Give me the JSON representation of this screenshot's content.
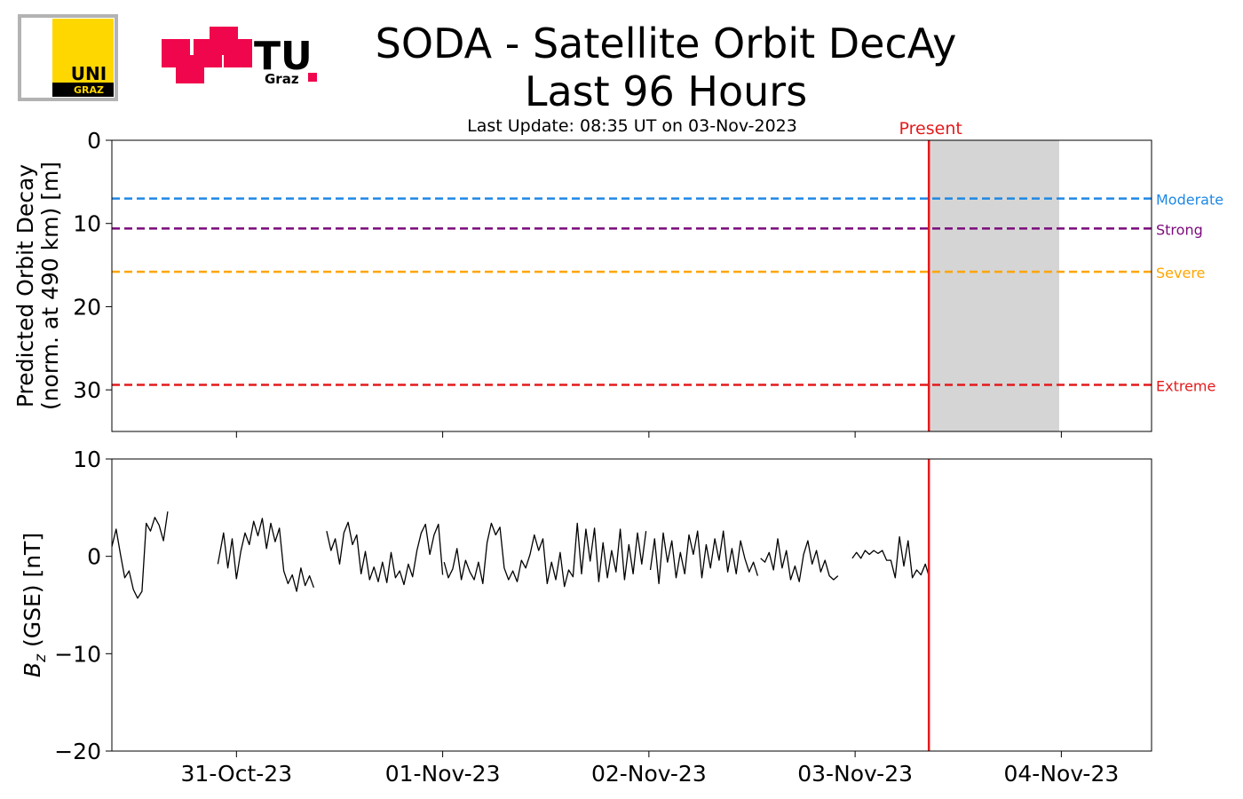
{
  "header": {
    "title_line1": "SODA - Satellite Orbit DecAy",
    "title_line2": "Last 96 Hours",
    "subtitle": "Last Update: 08:35 UT on 03-Nov-2023",
    "logo_uni_text": "UNI",
    "logo_uni_subtext": "GRAZ",
    "logo_tu_text": "TU",
    "logo_tu_subtext": "Graz"
  },
  "colors": {
    "moderate": "#1e88e5",
    "strong": "#7b0a7b",
    "severe": "#ffa500",
    "extreme": "#e41a1c",
    "present": "#e41a1c",
    "forecast_shade": "#d3d3d3",
    "bz_line": "#000000",
    "uni_yellow": "#ffd700",
    "tu_red": "#f0064c"
  },
  "chart_data": [
    {
      "type": "line",
      "ylabel_line1": "Predicted Orbit Decay",
      "ylabel_line2": "(norm. at 490 km) [m]",
      "ylim": [
        35,
        0
      ],
      "yticks": [
        0,
        10,
        20,
        30
      ],
      "xlim": [
        "2023-10-30T09:30",
        "2023-11-04T10:30"
      ],
      "present_label": "Present",
      "present_time": "2023-11-03T08:35",
      "forecast_shade_end": "2023-11-03T23:45",
      "thresholds": [
        {
          "name": "Moderate",
          "value": 7,
          "color": "#1e88e5"
        },
        {
          "name": "Strong",
          "value": 10.6,
          "color": "#7b0a7b"
        },
        {
          "name": "Severe",
          "value": 15.8,
          "color": "#ffa500"
        },
        {
          "name": "Extreme",
          "value": 29.4,
          "color": "#e41a1c"
        }
      ],
      "series": []
    },
    {
      "type": "line",
      "ylabel": "B_z (GSE) [nT]",
      "ylabel_symbol": "B",
      "ylabel_sub": "z",
      "ylabel_rest": " (GSE) [nT]",
      "ylim": [
        -20,
        10
      ],
      "yticks": [
        10,
        0,
        -10,
        -20
      ],
      "ytick_labels": [
        "10",
        "0",
        "−10",
        "−20"
      ],
      "xlim": [
        "2023-10-30T09:30",
        "2023-11-04T10:30"
      ],
      "xticks": [
        "31-Oct-23",
        "01-Nov-23",
        "02-Nov-23",
        "03-Nov-23",
        "04-Nov-23"
      ],
      "x_tick_times": [
        "2023-10-31T00:00",
        "2023-11-01T00:00",
        "2023-11-02T00:00",
        "2023-11-03T00:00",
        "2023-11-04T00:00"
      ],
      "present_time": "2023-11-03T08:35",
      "segments": [
        [
          [
            "2023-10-30T09:30",
            1.0
          ],
          [
            "2023-10-30T10:00",
            2.8
          ],
          [
            "2023-10-30T10:30",
            0.2
          ],
          [
            "2023-10-30T11:00",
            -2.2
          ],
          [
            "2023-10-30T11:30",
            -1.5
          ],
          [
            "2023-10-30T12:00",
            -3.4
          ],
          [
            "2023-10-30T12:30",
            -4.3
          ],
          [
            "2023-10-30T13:00",
            -3.6
          ],
          [
            "2023-10-30T13:30",
            3.4
          ],
          [
            "2023-10-30T14:00",
            2.6
          ],
          [
            "2023-10-30T14:30",
            4.0
          ],
          [
            "2023-10-30T15:00",
            3.2
          ],
          [
            "2023-10-30T15:30",
            1.6
          ],
          [
            "2023-10-30T16:00",
            4.6
          ]
        ],
        [
          [
            "2023-10-30T21:50",
            -0.8
          ],
          [
            "2023-10-30T22:30",
            2.4
          ],
          [
            "2023-10-30T23:00",
            -1.2
          ],
          [
            "2023-10-30T23:30",
            1.8
          ],
          [
            "2023-10-31T00:00",
            -2.3
          ],
          [
            "2023-10-31T00:30",
            0.5
          ],
          [
            "2023-10-31T01:00",
            2.4
          ],
          [
            "2023-10-31T01:30",
            1.2
          ],
          [
            "2023-10-31T02:00",
            3.6
          ],
          [
            "2023-10-31T02:30",
            2.1
          ],
          [
            "2023-10-31T03:00",
            3.9
          ],
          [
            "2023-10-31T03:30",
            0.8
          ],
          [
            "2023-10-31T04:00",
            3.4
          ],
          [
            "2023-10-31T04:30",
            1.5
          ],
          [
            "2023-10-31T05:00",
            2.9
          ],
          [
            "2023-10-31T05:30",
            -1.5
          ],
          [
            "2023-10-31T06:00",
            -2.8
          ],
          [
            "2023-10-31T06:30",
            -1.9
          ],
          [
            "2023-10-31T07:00",
            -3.6
          ],
          [
            "2023-10-31T07:30",
            -1.2
          ],
          [
            "2023-10-31T08:00",
            -3.0
          ],
          [
            "2023-10-31T08:30",
            -2.0
          ],
          [
            "2023-10-31T09:00",
            -3.2
          ]
        ],
        [
          [
            "2023-10-31T10:30",
            2.6
          ],
          [
            "2023-10-31T11:00",
            0.6
          ],
          [
            "2023-10-31T11:30",
            1.8
          ],
          [
            "2023-10-31T12:00",
            -0.8
          ],
          [
            "2023-10-31T12:30",
            2.4
          ],
          [
            "2023-10-31T13:00",
            3.5
          ],
          [
            "2023-10-31T13:30",
            1.2
          ],
          [
            "2023-10-31T14:00",
            2.2
          ],
          [
            "2023-10-31T14:30",
            -1.8
          ],
          [
            "2023-10-31T15:00",
            0.5
          ],
          [
            "2023-10-31T15:30",
            -2.4
          ],
          [
            "2023-10-31T16:00",
            -1.1
          ],
          [
            "2023-10-31T16:30",
            -2.6
          ],
          [
            "2023-10-31T17:00",
            -0.6
          ],
          [
            "2023-10-31T17:30",
            -2.7
          ],
          [
            "2023-10-31T18:00",
            0.4
          ],
          [
            "2023-10-31T18:30",
            -2.2
          ],
          [
            "2023-10-31T19:00",
            -1.5
          ],
          [
            "2023-10-31T19:30",
            -2.9
          ],
          [
            "2023-10-31T20:00",
            -0.8
          ],
          [
            "2023-10-31T20:30",
            -2.1
          ],
          [
            "2023-10-31T21:00",
            0.6
          ],
          [
            "2023-10-31T21:30",
            2.4
          ],
          [
            "2023-10-31T22:00",
            3.3
          ],
          [
            "2023-10-31T22:30",
            0.2
          ],
          [
            "2023-10-31T23:00",
            2.2
          ],
          [
            "2023-10-31T23:30",
            3.3
          ],
          [
            "2023-11-01T00:00",
            -1.9
          ]
        ],
        [
          [
            "2023-11-01T00:10",
            -0.6
          ],
          [
            "2023-11-01T00:40",
            -2.2
          ],
          [
            "2023-11-01T01:10",
            -1.3
          ],
          [
            "2023-11-01T01:40",
            0.8
          ],
          [
            "2023-11-01T02:10",
            -2.4
          ],
          [
            "2023-11-01T02:40",
            -0.4
          ],
          [
            "2023-11-01T03:10",
            -1.6
          ],
          [
            "2023-11-01T03:40",
            -2.4
          ],
          [
            "2023-11-01T04:10",
            -0.6
          ],
          [
            "2023-11-01T04:40",
            -2.8
          ],
          [
            "2023-11-01T05:10",
            1.4
          ],
          [
            "2023-11-01T05:40",
            3.4
          ],
          [
            "2023-11-01T06:10",
            2.2
          ],
          [
            "2023-11-01T06:40",
            3.0
          ],
          [
            "2023-11-01T07:10",
            -1.2
          ],
          [
            "2023-11-01T07:40",
            -2.4
          ],
          [
            "2023-11-01T08:10",
            -1.5
          ],
          [
            "2023-11-01T08:40",
            -2.6
          ],
          [
            "2023-11-01T09:10",
            -0.4
          ],
          [
            "2023-11-01T09:40",
            -1.2
          ],
          [
            "2023-11-01T10:10",
            0.2
          ],
          [
            "2023-11-01T10:40",
            2.2
          ],
          [
            "2023-11-01T11:10",
            0.6
          ],
          [
            "2023-11-01T11:40",
            1.8
          ],
          [
            "2023-11-01T12:10",
            -2.8
          ],
          [
            "2023-11-01T12:40",
            -0.6
          ],
          [
            "2023-11-01T13:10",
            -2.4
          ],
          [
            "2023-11-01T13:40",
            0.4
          ],
          [
            "2023-11-01T14:10",
            -3.1
          ],
          [
            "2023-11-01T14:40",
            -1.4
          ],
          [
            "2023-11-01T15:10",
            -2.1
          ],
          [
            "2023-11-01T15:40",
            3.4
          ],
          [
            "2023-11-01T16:10",
            -1.8
          ],
          [
            "2023-11-01T16:40",
            2.8
          ],
          [
            "2023-11-01T17:10",
            -0.5
          ],
          [
            "2023-11-01T17:40",
            2.9
          ],
          [
            "2023-11-01T18:10",
            -2.6
          ],
          [
            "2023-11-01T18:40",
            1.4
          ],
          [
            "2023-11-01T19:10",
            -2.2
          ],
          [
            "2023-11-01T19:40",
            0.6
          ],
          [
            "2023-11-01T20:10",
            -1.6
          ],
          [
            "2023-11-01T20:40",
            2.8
          ],
          [
            "2023-11-01T21:10",
            -2.4
          ],
          [
            "2023-11-01T21:40",
            1.2
          ],
          [
            "2023-11-01T22:10",
            -1.8
          ],
          [
            "2023-11-01T22:40",
            2.4
          ],
          [
            "2023-11-01T23:10",
            -0.8
          ],
          [
            "2023-11-01T23:40",
            2.6
          ]
        ],
        [
          [
            "2023-11-02T00:10",
            -1.4
          ],
          [
            "2023-11-02T00:40",
            1.8
          ],
          [
            "2023-11-02T01:10",
            -2.8
          ],
          [
            "2023-11-02T01:40",
            2.4
          ],
          [
            "2023-11-02T02:10",
            -0.6
          ],
          [
            "2023-11-02T02:40",
            1.6
          ],
          [
            "2023-11-02T03:10",
            -2.2
          ],
          [
            "2023-11-02T03:40",
            0.4
          ],
          [
            "2023-11-02T04:10",
            -1.8
          ],
          [
            "2023-11-02T04:40",
            2.2
          ],
          [
            "2023-11-02T05:10",
            0.2
          ],
          [
            "2023-11-02T05:40",
            2.6
          ],
          [
            "2023-11-02T06:10",
            -2.2
          ],
          [
            "2023-11-02T06:40",
            1.2
          ],
          [
            "2023-11-02T07:10",
            -1.2
          ],
          [
            "2023-11-02T07:40",
            1.8
          ],
          [
            "2023-11-02T08:10",
            -0.4
          ],
          [
            "2023-11-02T08:40",
            2.6
          ],
          [
            "2023-11-02T09:10",
            -1.6
          ],
          [
            "2023-11-02T09:40",
            0.8
          ],
          [
            "2023-11-02T10:10",
            -1.8
          ],
          [
            "2023-11-02T10:40",
            1.6
          ],
          [
            "2023-11-02T11:10",
            -0.2
          ],
          [
            "2023-11-02T11:40",
            -1.6
          ],
          [
            "2023-11-02T12:10",
            -0.6
          ],
          [
            "2023-11-02T12:40",
            -2.0
          ]
        ],
        [
          [
            "2023-11-02T13:00",
            -0.2
          ],
          [
            "2023-11-02T13:30",
            -0.6
          ],
          [
            "2023-11-02T14:00",
            0.4
          ],
          [
            "2023-11-02T14:30",
            -1.4
          ],
          [
            "2023-11-02T15:00",
            1.8
          ],
          [
            "2023-11-02T15:30",
            -1.2
          ],
          [
            "2023-11-02T16:00",
            0.6
          ],
          [
            "2023-11-02T16:30",
            -2.4
          ],
          [
            "2023-11-02T17:00",
            -1.0
          ],
          [
            "2023-11-02T17:30",
            -2.6
          ],
          [
            "2023-11-02T18:00",
            0.2
          ],
          [
            "2023-11-02T18:30",
            1.6
          ],
          [
            "2023-11-02T19:00",
            -0.8
          ],
          [
            "2023-11-02T19:30",
            0.6
          ],
          [
            "2023-11-02T20:00",
            -1.6
          ],
          [
            "2023-11-02T20:30",
            -0.4
          ],
          [
            "2023-11-02T21:00",
            -2.0
          ],
          [
            "2023-11-02T21:30",
            -2.4
          ],
          [
            "2023-11-02T22:00",
            -2.0
          ]
        ],
        [
          [
            "2023-11-02T23:40",
            -0.2
          ],
          [
            "2023-11-03T00:10",
            0.4
          ],
          [
            "2023-11-03T00:40",
            -0.2
          ],
          [
            "2023-11-03T01:10",
            0.6
          ],
          [
            "2023-11-03T01:40",
            0.2
          ],
          [
            "2023-11-03T02:10",
            0.6
          ],
          [
            "2023-11-03T02:40",
            0.3
          ],
          [
            "2023-11-03T03:10",
            0.6
          ],
          [
            "2023-11-03T03:40",
            -0.4
          ],
          [
            "2023-11-03T04:10",
            -0.4
          ],
          [
            "2023-11-03T04:40",
            -2.2
          ],
          [
            "2023-11-03T05:10",
            2.0
          ],
          [
            "2023-11-03T05:40",
            -1.0
          ],
          [
            "2023-11-03T06:10",
            1.6
          ],
          [
            "2023-11-03T06:40",
            -2.2
          ],
          [
            "2023-11-03T07:10",
            -1.4
          ],
          [
            "2023-11-03T07:40",
            -1.9
          ],
          [
            "2023-11-03T08:10",
            -0.8
          ],
          [
            "2023-11-03T08:35",
            -2.0
          ]
        ]
      ]
    }
  ]
}
